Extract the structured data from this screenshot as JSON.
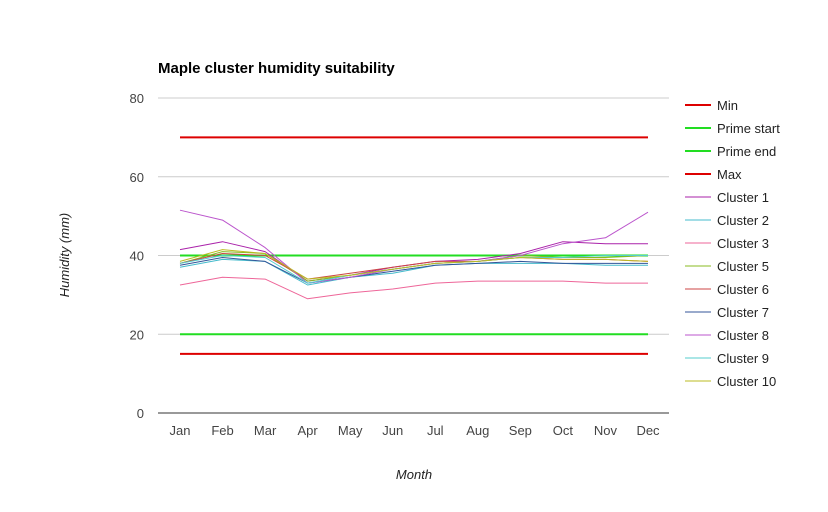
{
  "chart_data": {
    "type": "line",
    "title": "Maple cluster humidity suitability",
    "xlabel": "Month",
    "ylabel": "Humidity (mm)",
    "ylim": [
      0,
      80
    ],
    "yticks": [
      0,
      20,
      40,
      60,
      80
    ],
    "grid": true,
    "legend_position": "right",
    "categories": [
      "Jan",
      "Feb",
      "Mar",
      "Apr",
      "May",
      "Jun",
      "Jul",
      "Aug",
      "Sep",
      "Oct",
      "Nov",
      "Dec"
    ],
    "series": [
      {
        "name": "Min",
        "color": "#dd0000",
        "width": 2,
        "values": [
          15,
          15,
          15,
          15,
          15,
          15,
          15,
          15,
          15,
          15,
          15,
          15
        ]
      },
      {
        "name": "Prime start",
        "color": "#22dd22",
        "width": 2,
        "values": [
          20,
          20,
          20,
          20,
          20,
          20,
          20,
          20,
          20,
          20,
          20,
          20
        ]
      },
      {
        "name": "Prime end",
        "color": "#22dd22",
        "width": 2,
        "values": [
          40,
          40,
          40,
          40,
          40,
          40,
          40,
          40,
          40,
          40,
          40,
          40
        ]
      },
      {
        "name": "Max",
        "color": "#dd0000",
        "width": 2,
        "values": [
          70,
          70,
          70,
          70,
          70,
          70,
          70,
          70,
          70,
          70,
          70,
          70
        ]
      },
      {
        "name": "Cluster 1",
        "color": "#aa22aa",
        "width": 1,
        "values": [
          41.5,
          43.5,
          41,
          33.5,
          35,
          37,
          38.5,
          39,
          40.5,
          43.5,
          43,
          43
        ]
      },
      {
        "name": "Cluster 2",
        "color": "#44bbcc",
        "width": 1,
        "values": [
          37,
          39,
          38.5,
          32.5,
          34.5,
          35.5,
          37.5,
          38,
          38,
          38,
          37.5,
          37.5
        ]
      },
      {
        "name": "Cluster 3",
        "color": "#ee6699",
        "width": 1,
        "values": [
          32.5,
          34.5,
          34,
          29,
          30.5,
          31.5,
          33,
          33.5,
          33.5,
          33.5,
          33,
          33
        ]
      },
      {
        "name": "Cluster 5",
        "color": "#88bb22",
        "width": 1,
        "values": [
          38,
          41,
          40.5,
          33.5,
          35,
          36.5,
          38,
          38.5,
          40,
          39.5,
          39.5,
          40
        ]
      },
      {
        "name": "Cluster 6",
        "color": "#cc4444",
        "width": 1,
        "values": [
          38,
          40.5,
          40,
          34,
          35.5,
          37,
          38.5,
          38.5,
          39.5,
          39,
          39,
          38.5
        ]
      },
      {
        "name": "Cluster 7",
        "color": "#335599",
        "width": 1,
        "values": [
          37.5,
          39.5,
          38.5,
          33,
          34.5,
          36,
          37.5,
          38,
          38.5,
          38,
          38,
          38
        ]
      },
      {
        "name": "Cluster 8",
        "color": "#bb55cc",
        "width": 1,
        "values": [
          51.5,
          49,
          42,
          33,
          34.5,
          36.5,
          38,
          38.5,
          40,
          43,
          44.5,
          51
        ]
      },
      {
        "name": "Cluster 9",
        "color": "#55cccc",
        "width": 1,
        "values": [
          38,
          40,
          39.5,
          33,
          35,
          36.5,
          38,
          38.5,
          39.5,
          39.5,
          40,
          40
        ]
      },
      {
        "name": "Cluster 10",
        "color": "#bbbb22",
        "width": 1,
        "values": [
          38.5,
          41.5,
          40.5,
          34,
          35,
          36.5,
          38,
          38.5,
          39.5,
          39,
          39,
          38.5
        ]
      }
    ]
  }
}
